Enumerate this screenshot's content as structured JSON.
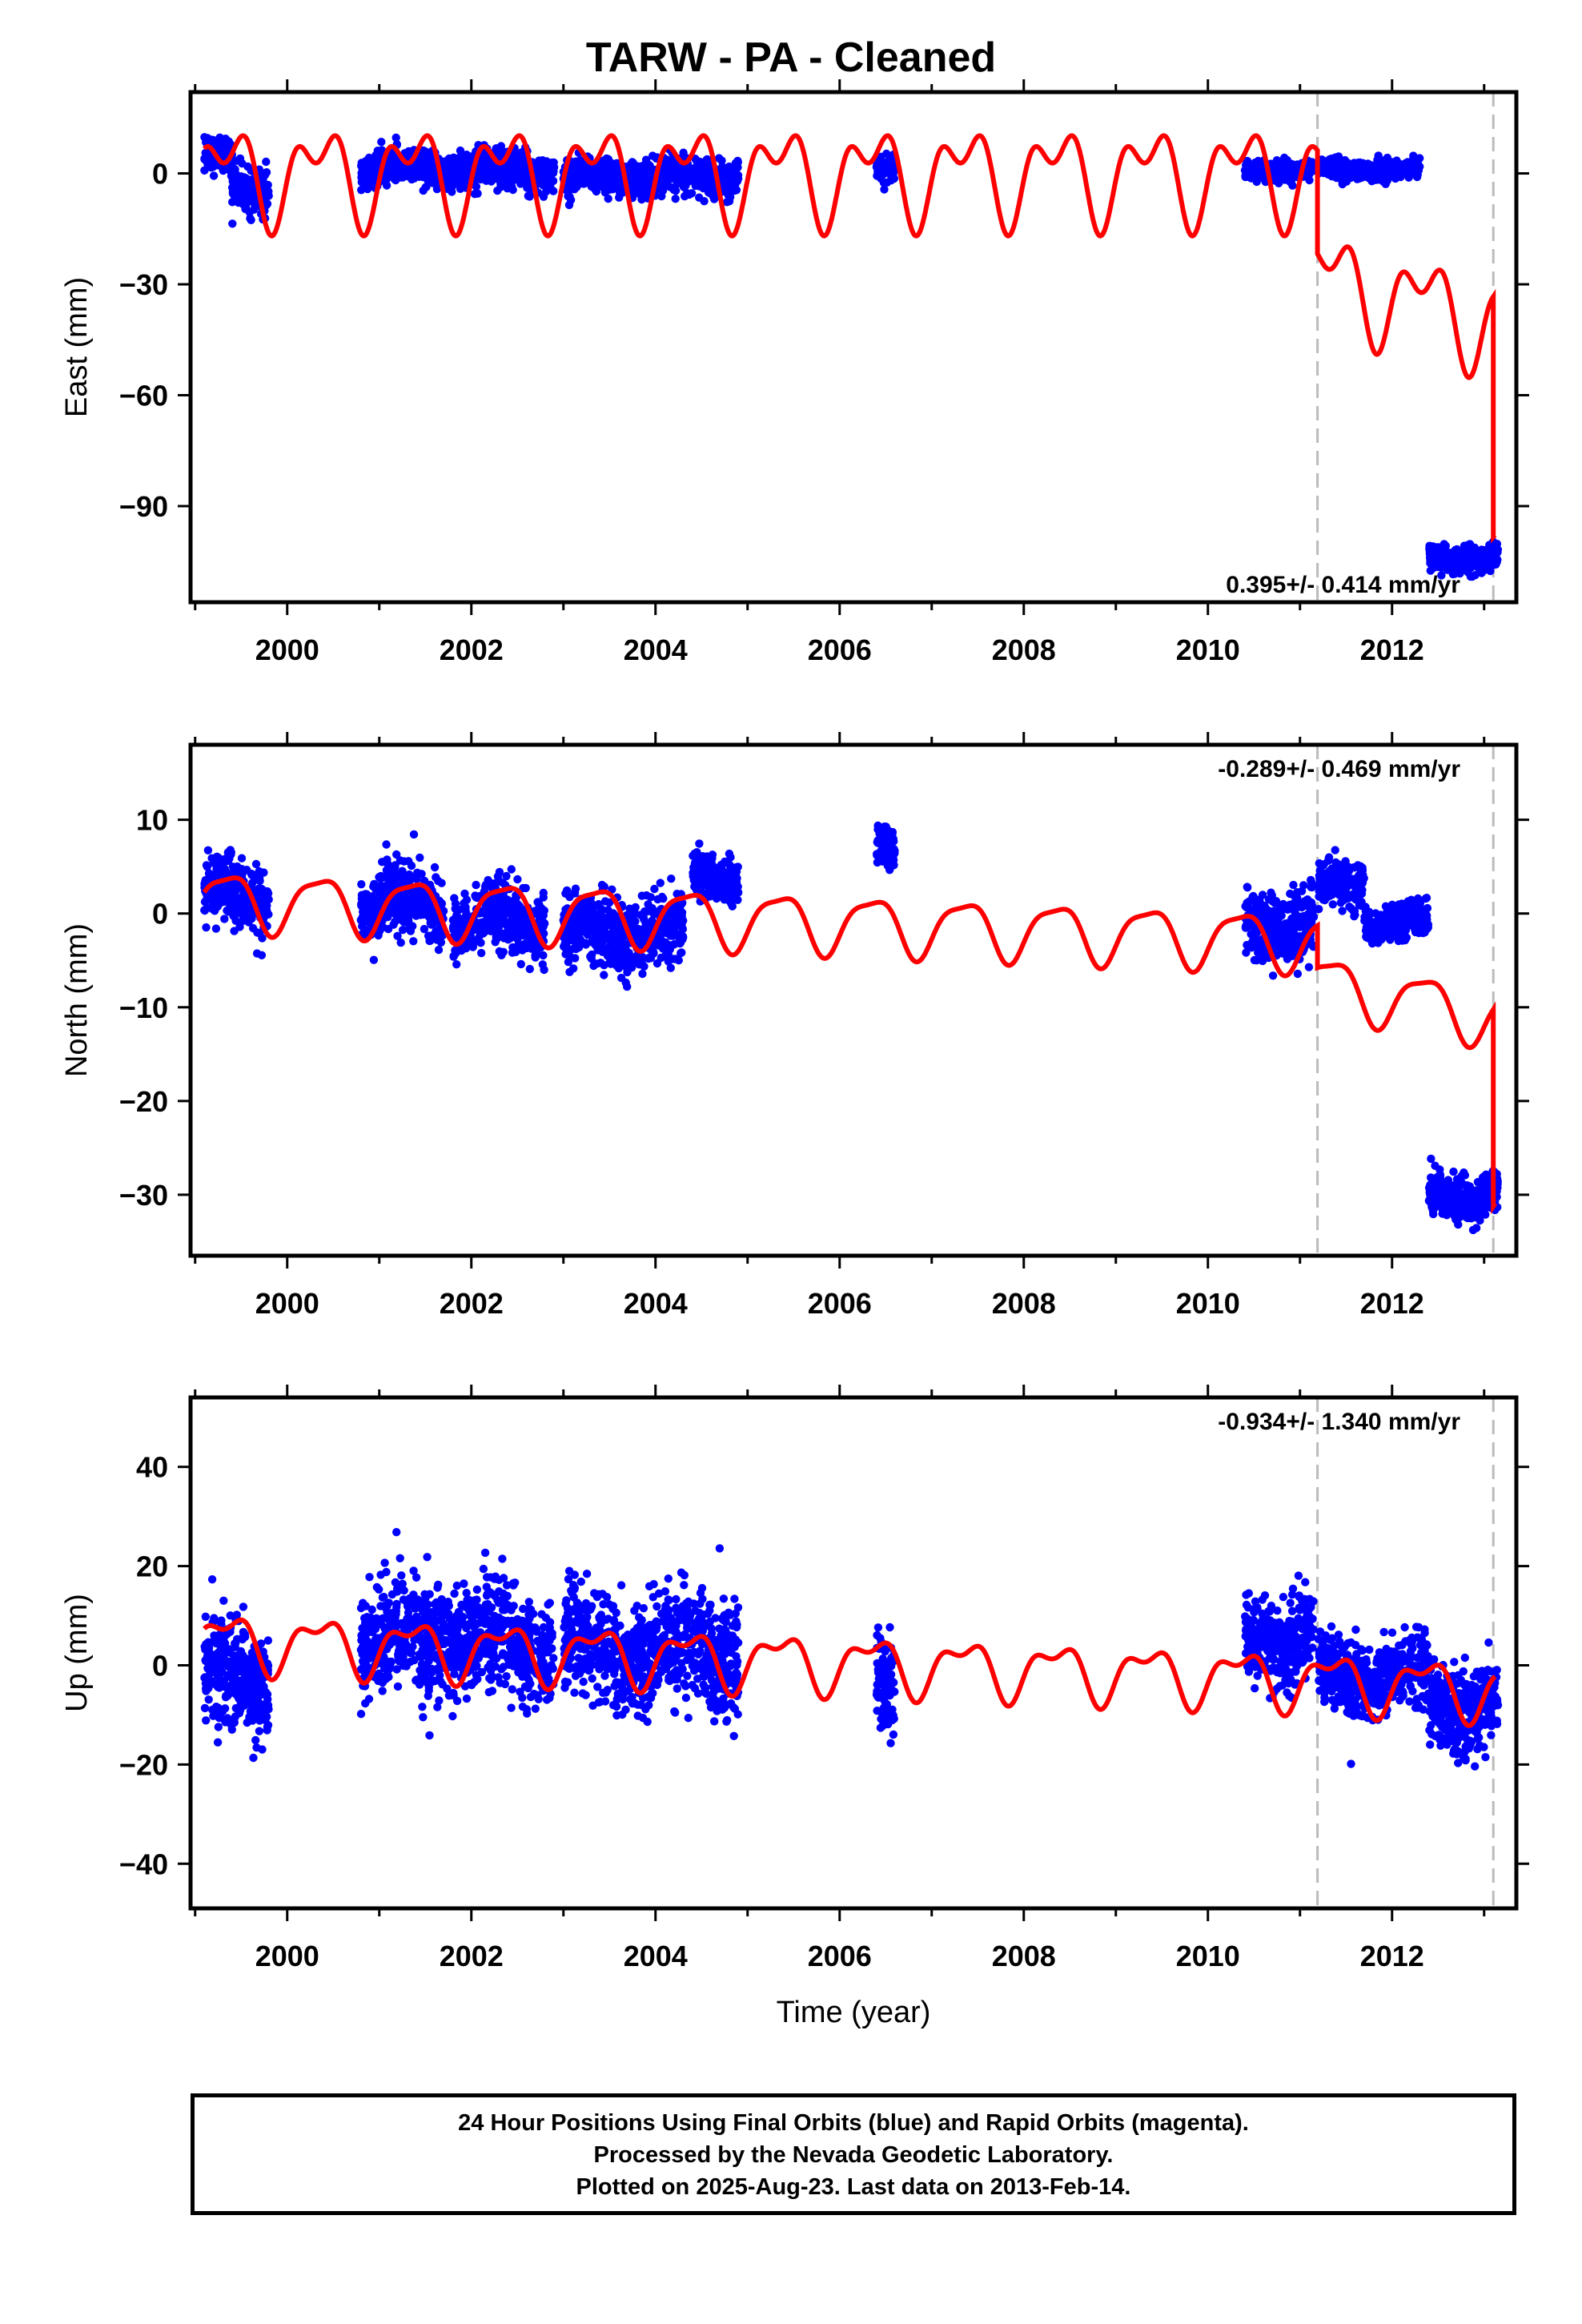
{
  "title": "TARW  - PA - Cleaned",
  "footer": {
    "line1": "24 Hour Positions Using Final Orbits (blue) and Rapid Orbits (magenta).",
    "line2": "Processed by the Nevada Geodetic Laboratory.",
    "line3": "Plotted on 2025-Aug-23. Last data on 2013-Feb-14."
  },
  "colors": {
    "data": "#0000ff",
    "model": "#ff0000",
    "event_line": "#bbbbbb",
    "axes": "#000000"
  },
  "chart_data": [
    {
      "type": "scatter",
      "panel": "east",
      "ylabel": "East (mm)",
      "xlabel": "",
      "xlim": [
        1998.95,
        2013.35
      ],
      "ylim": [
        -116,
        22
      ],
      "x_ticks": [
        2000,
        2002,
        2004,
        2006,
        2008,
        2010,
        2012
      ],
      "x_tick_labels": [
        "2000",
        "2002",
        "2004",
        "2006",
        "2008",
        "2010",
        "2012"
      ],
      "y_ticks": [
        0,
        -30,
        -60,
        -90
      ],
      "y_tick_labels": [
        "0",
        "−30",
        "−60",
        "−90"
      ],
      "rate_label": "0.395+/- 0.414 mm/yr",
      "event_lines": [
        2011.19,
        2013.1
      ],
      "data_segments": [
        {
          "x": [
            1999.1,
            1999.4
          ],
          "center": 4,
          "scatter": 4
        },
        {
          "x": [
            1999.4,
            1999.8
          ],
          "center": -4,
          "scatter": 5
        },
        {
          "x": [
            2000.8,
            2002.9
          ],
          "center": 1,
          "scatter": 4
        },
        {
          "x": [
            2003.0,
            2004.9
          ],
          "center": -1,
          "scatter": 4
        },
        {
          "x": [
            2006.4,
            2006.6
          ],
          "center": 1,
          "scatter": 3
        },
        {
          "x": [
            2010.4,
            2011.15
          ],
          "center": 1,
          "scatter": 2
        },
        {
          "x": [
            2011.2,
            2012.3
          ],
          "center": 1,
          "scatter": 2
        },
        {
          "x": [
            2012.4,
            2013.15
          ],
          "center": -104,
          "scatter": 3
        }
      ],
      "model": {
        "breaks": [
          {
            "x0": 1999.1,
            "x1": 2011.19,
            "y0": 0,
            "y1": 0
          },
          {
            "x0": 2011.19,
            "x1": 2013.1,
            "y0": -28,
            "y1": -40
          },
          {
            "x0": 2013.1,
            "x1": 2013.12,
            "y0": -105,
            "y1": -105
          }
        ],
        "annual_amp": 10,
        "semiannual_amp": 7
      },
      "legend": "none"
    },
    {
      "type": "scatter",
      "panel": "north",
      "ylabel": "North (mm)",
      "xlabel": "",
      "xlim": [
        1998.95,
        2013.35
      ],
      "ylim": [
        -36.5,
        18
      ],
      "x_ticks": [
        2000,
        2002,
        2004,
        2006,
        2008,
        2010,
        2012
      ],
      "x_tick_labels": [
        "2000",
        "2002",
        "2004",
        "2006",
        "2008",
        "2010",
        "2012"
      ],
      "y_ticks": [
        10,
        0,
        -10,
        -20,
        -30
      ],
      "y_tick_labels": [
        "10",
        "0",
        "−10",
        "−20",
        "−30"
      ],
      "rate_label": "-0.289+/- 0.469 mm/yr",
      "event_lines": [
        2011.19,
        2013.1
      ],
      "data_segments": [
        {
          "x": [
            1999.1,
            1999.8
          ],
          "center": 2,
          "scatter": 3
        },
        {
          "x": [
            2000.8,
            2001.7
          ],
          "center": 1,
          "scatter": 3
        },
        {
          "x": [
            2001.8,
            2002.8
          ],
          "center": -1,
          "scatter": 3
        },
        {
          "x": [
            2003.0,
            2004.3
          ],
          "center": -2,
          "scatter": 3
        },
        {
          "x": [
            2004.4,
            2004.9
          ],
          "center": 4,
          "scatter": 2
        },
        {
          "x": [
            2006.4,
            2006.6
          ],
          "center": 7,
          "scatter": 2
        },
        {
          "x": [
            2010.4,
            2011.15
          ],
          "center": -1,
          "scatter": 3
        },
        {
          "x": [
            2011.2,
            2011.7
          ],
          "center": 3,
          "scatter": 2
        },
        {
          "x": [
            2011.7,
            2012.4
          ],
          "center": -1,
          "scatter": 1.5
        },
        {
          "x": [
            2012.4,
            2013.15
          ],
          "center": -30,
          "scatter": 2
        }
      ],
      "model": {
        "breaks": [
          {
            "x0": 1999.1,
            "x1": 2011.19,
            "y0": 1.5,
            "y1": -3
          },
          {
            "x0": 2011.19,
            "x1": 2013.1,
            "y0": -7.5,
            "y1": -11
          },
          {
            "x0": 2013.1,
            "x1": 2013.12,
            "y0": -32,
            "y1": -32
          }
        ],
        "annual_amp": 3,
        "semiannual_amp": 0.8
      },
      "legend": "none"
    },
    {
      "type": "scatter",
      "panel": "up",
      "ylabel": "Up (mm)",
      "xlabel": "Time (year)",
      "xlim": [
        1998.95,
        2013.35
      ],
      "ylim": [
        -49,
        54
      ],
      "x_ticks": [
        2000,
        2002,
        2004,
        2006,
        2008,
        2010,
        2012
      ],
      "x_tick_labels": [
        "2000",
        "2002",
        "2004",
        "2006",
        "2008",
        "2010",
        "2012"
      ],
      "y_ticks": [
        40,
        20,
        0,
        -20,
        -40
      ],
      "y_tick_labels": [
        "40",
        "20",
        "0",
        "−20",
        "−40"
      ],
      "rate_label": "-0.934+/- 1.340 mm/yr",
      "event_lines": [
        2011.19,
        2013.1
      ],
      "data_segments": [
        {
          "x": [
            1999.1,
            1999.8
          ],
          "center": -3,
          "scatter": 9
        },
        {
          "x": [
            2000.8,
            2002.9
          ],
          "center": 5,
          "scatter": 9
        },
        {
          "x": [
            2003.0,
            2004.9
          ],
          "center": 3,
          "scatter": 9
        },
        {
          "x": [
            2006.4,
            2006.6
          ],
          "center": -4,
          "scatter": 8
        },
        {
          "x": [
            2010.4,
            2011.15
          ],
          "center": 6,
          "scatter": 7
        },
        {
          "x": [
            2011.2,
            2012.4
          ],
          "center": -2,
          "scatter": 6
        },
        {
          "x": [
            2012.4,
            2013.15
          ],
          "center": -8,
          "scatter": 7
        }
      ],
      "model": {
        "breaks": [
          {
            "x0": 1999.1,
            "x1": 2011.19,
            "y0": 5,
            "y1": -3
          },
          {
            "x0": 2011.19,
            "x1": 2013.12,
            "y0": -3,
            "y1": -5
          }
        ],
        "annual_amp": 5,
        "semiannual_amp": 2.5
      },
      "legend": "none"
    }
  ]
}
